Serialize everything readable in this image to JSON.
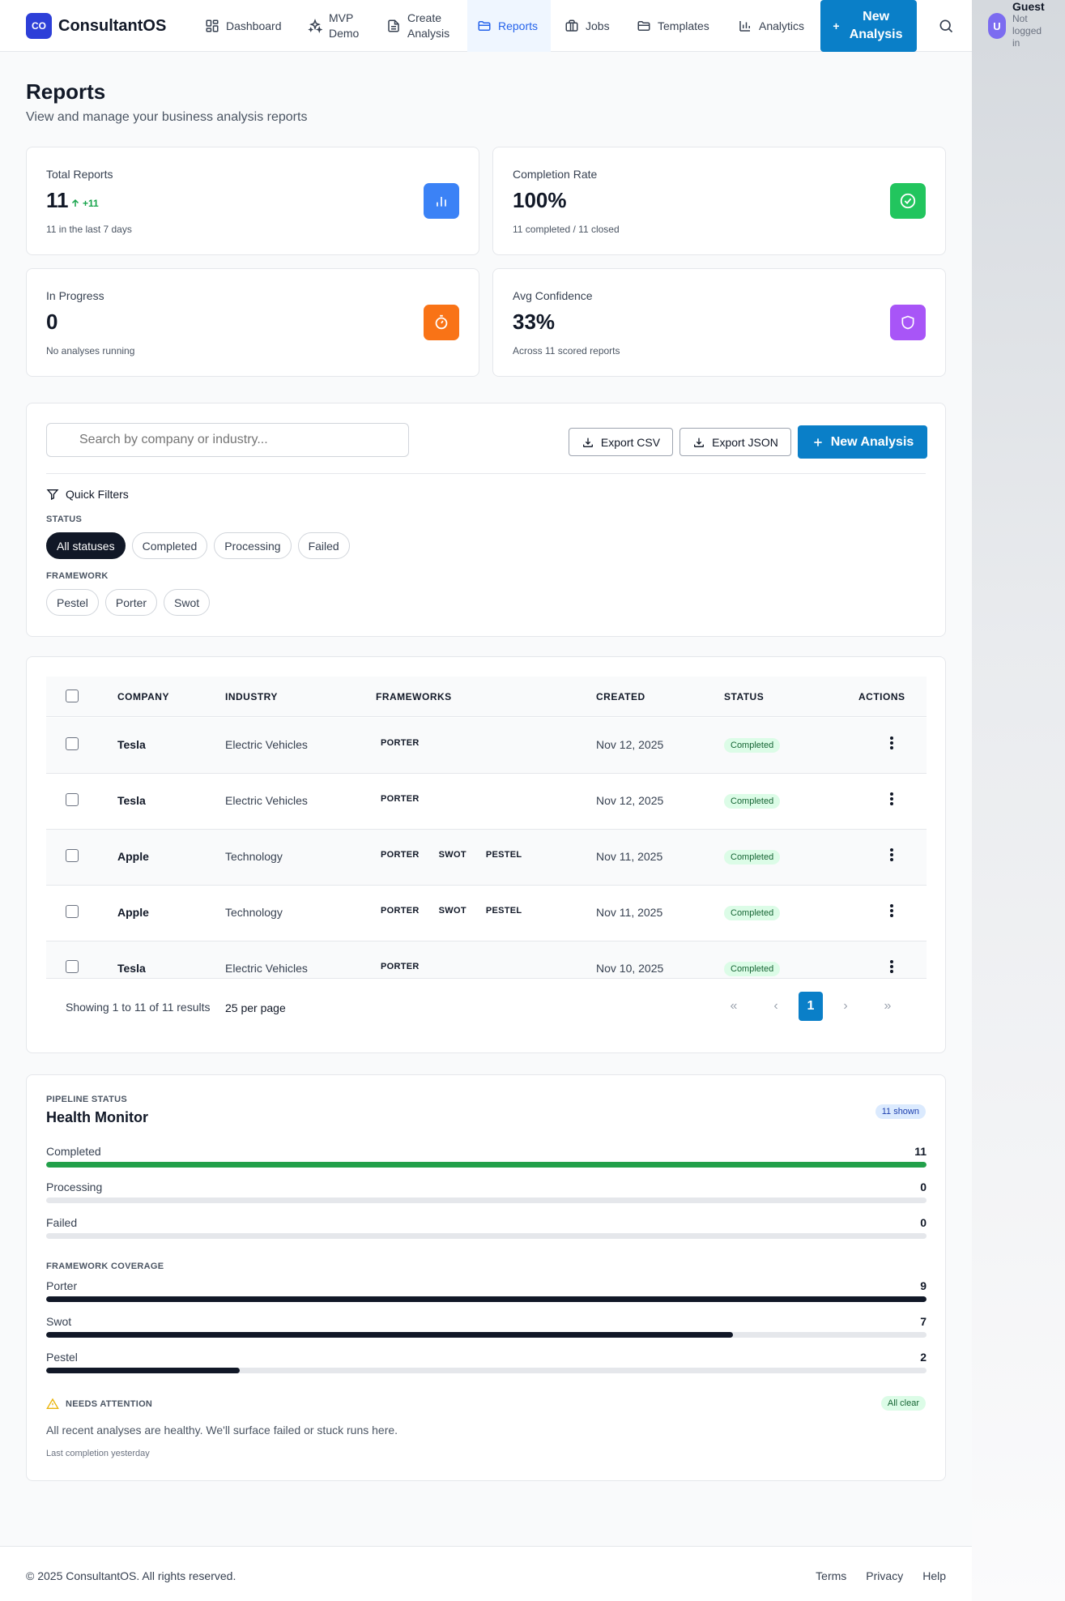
{
  "app": {
    "logo_mark": "CO",
    "name": "ConsultantOS"
  },
  "nav": {
    "items": [
      {
        "label": "Dashboard",
        "icon": "grid-icon"
      },
      {
        "label": "MVP Demo",
        "icon": "sparkles-icon"
      },
      {
        "label": "Create Analysis",
        "icon": "document-icon"
      },
      {
        "label": "Reports",
        "icon": "folder-icon",
        "active": true
      },
      {
        "label": "Jobs",
        "icon": "briefcase-icon"
      },
      {
        "label": "Templates",
        "icon": "folder-icon"
      },
      {
        "label": "Analytics",
        "icon": "bar-chart-icon"
      }
    ],
    "new_button": "New Analysis",
    "search_icon": "search-icon"
  },
  "user": {
    "initial": "U",
    "name": "Guest",
    "status": "Not logged in"
  },
  "page": {
    "title": "Reports",
    "subtitle": "View and manage your business analysis reports"
  },
  "stats": [
    {
      "label": "Total Reports",
      "value": "11",
      "delta": "+11",
      "sub": "11 in the last 7 days",
      "icon": "bar-chart-icon",
      "color": "#3b82f6"
    },
    {
      "label": "Completion Rate",
      "value": "100%",
      "sub": "11 completed / 11 closed",
      "icon": "check-circle-icon",
      "color": "#22c55e"
    },
    {
      "label": "In Progress",
      "value": "0",
      "sub": "No analyses running",
      "icon": "timer-icon",
      "color": "#f97316"
    },
    {
      "label": "Avg Confidence",
      "value": "33%",
      "sub": "Across 11 scored reports",
      "icon": "shield-icon",
      "color": "#a855f7"
    }
  ],
  "filters": {
    "search_placeholder": "Search by company or industry...",
    "export_csv": "Export CSV",
    "export_json": "Export JSON",
    "new_analysis": "New Analysis",
    "quick_filters": "Quick Filters",
    "status_label": "STATUS",
    "status_options": [
      "All statuses",
      "Completed",
      "Processing",
      "Failed"
    ],
    "framework_label": "FRAMEWORK",
    "framework_options": [
      "Pestel",
      "Porter",
      "Swot"
    ]
  },
  "table": {
    "columns": [
      "COMPANY",
      "INDUSTRY",
      "FRAMEWORKS",
      "CREATED",
      "STATUS",
      "ACTIONS"
    ],
    "rows": [
      {
        "company": "Tesla",
        "industry": "Electric Vehicles",
        "frameworks": [
          "PORTER"
        ],
        "created": "Nov 12, 2025",
        "status": "Completed"
      },
      {
        "company": "Tesla",
        "industry": "Electric Vehicles",
        "frameworks": [
          "PORTER"
        ],
        "created": "Nov 12, 2025",
        "status": "Completed"
      },
      {
        "company": "Apple",
        "industry": "Technology",
        "frameworks": [
          "PORTER",
          "SWOT",
          "PESTEL"
        ],
        "created": "Nov 11, 2025",
        "status": "Completed"
      },
      {
        "company": "Apple",
        "industry": "Technology",
        "frameworks": [
          "PORTER",
          "SWOT",
          "PESTEL"
        ],
        "created": "Nov 11, 2025",
        "status": "Completed"
      },
      {
        "company": "Tesla",
        "industry": "Electric Vehicles",
        "frameworks": [
          "PORTER"
        ],
        "created": "Nov 10, 2025",
        "status": "Completed"
      }
    ],
    "showing": "Showing 1 to 11 of 11 results",
    "per_page": "25 per page",
    "pagination": {
      "first": "«",
      "prev": "‹",
      "current": "1",
      "next": "›",
      "last": "»"
    }
  },
  "health": {
    "eyebrow": "PIPELINE STATUS",
    "title": "Health Monitor",
    "shown": "11 shown",
    "status_bars": [
      {
        "label": "Completed",
        "value": "11",
        "fraction": 1.0,
        "color": "#22a04a"
      },
      {
        "label": "Processing",
        "value": "0",
        "fraction": 0,
        "color": "#22a04a"
      },
      {
        "label": "Failed",
        "value": "0",
        "fraction": 0,
        "color": "#ef4444"
      }
    ],
    "coverage_label": "FRAMEWORK COVERAGE",
    "coverage_bars": [
      {
        "label": "Porter",
        "value": "9",
        "fraction": 1.0,
        "color": "#111827"
      },
      {
        "label": "Swot",
        "value": "7",
        "fraction": 0.78,
        "color": "#111827"
      },
      {
        "label": "Pestel",
        "value": "2",
        "fraction": 0.22,
        "color": "#111827"
      }
    ],
    "attention_label": "NEEDS ATTENTION",
    "attention_badge": "All clear",
    "attention_msg": "All recent analyses are healthy. We'll surface failed or stuck runs here.",
    "last_completion": "Last completion yesterday"
  },
  "footer": {
    "copyright": "© 2025 ConsultantOS. All rights reserved.",
    "links": [
      "Terms",
      "Privacy",
      "Help"
    ]
  }
}
